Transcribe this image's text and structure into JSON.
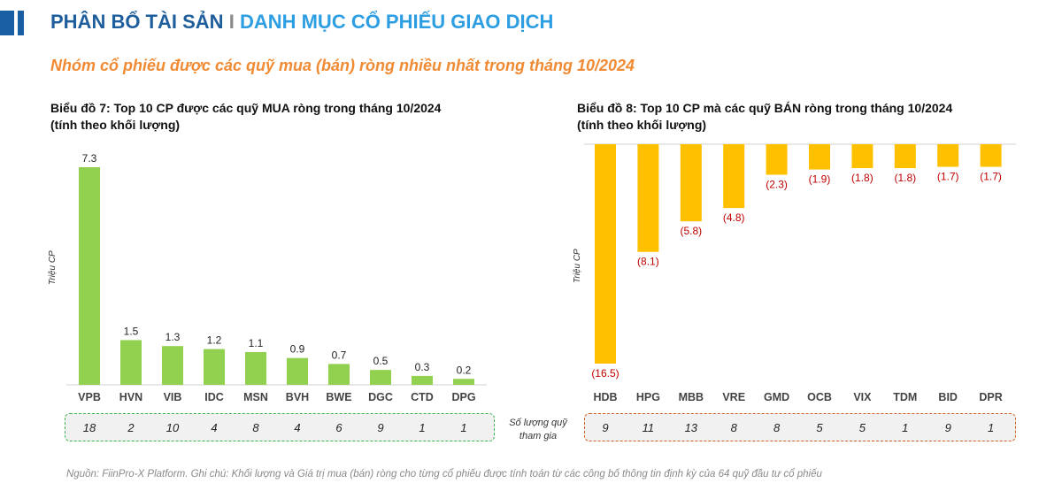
{
  "header": {
    "title_part1": "PHÂN BỔ TÀI SẢN",
    "separator": "I",
    "title_part2": "DANH MỤC CỔ PHIẾU GIAO DỊCH"
  },
  "subtitle": "Nhóm cổ phiếu được các quỹ mua (bán) ròng nhiều nhất trong tháng 10/2024",
  "funds_label": "Số lượng quỹ tham gia",
  "footer": "Nguồn: FiinPro-X Platform. Ghi chú: Khối lượng và Giá trị mua (bán) ròng cho từng cổ phiếu được tính toán từ các công bố thông tin định kỳ của 64 quỹ đầu tư cổ phiếu",
  "colors": {
    "buy": "#92d050",
    "sell": "#ffc000",
    "negative_label": "#c00000"
  },
  "chart_data": [
    {
      "type": "bar",
      "title": "Biểu đồ 7: Top 10 CP được các quỹ MUA ròng trong tháng 10/2024",
      "title_line2": "(tính theo khối lượng)",
      "ylabel": "Triệu CP",
      "categories": [
        "VPB",
        "HVN",
        "VIB",
        "IDC",
        "MSN",
        "BVH",
        "BWE",
        "DGC",
        "CTD",
        "DPG"
      ],
      "values": [
        7.3,
        1.5,
        1.3,
        1.2,
        1.1,
        0.9,
        0.7,
        0.5,
        0.3,
        0.2
      ],
      "value_labels": [
        "7.3",
        "1.5",
        "1.3",
        "1.2",
        "1.1",
        "0.9",
        "0.7",
        "0.5",
        "0.3",
        "0.2"
      ],
      "funds": [
        "18",
        "2",
        "10",
        "4",
        "8",
        "4",
        "6",
        "9",
        "1",
        "1"
      ]
    },
    {
      "type": "bar",
      "title": "Biểu đồ 8: Top 10 CP mà các quỹ BÁN ròng trong tháng 10/2024",
      "title_line2": "(tính theo khối lượng)",
      "ylabel": "Triệu CP",
      "categories": [
        "HDB",
        "HPG",
        "MBB",
        "VRE",
        "GMD",
        "OCB",
        "VIX",
        "TDM",
        "BID",
        "DPR"
      ],
      "values": [
        -16.5,
        -8.1,
        -5.8,
        -4.8,
        -2.3,
        -1.9,
        -1.8,
        -1.8,
        -1.7,
        -1.7
      ],
      "value_labels": [
        "(16.5)",
        "(8.1)",
        "(5.8)",
        "(4.8)",
        "(2.3)",
        "(1.9)",
        "(1.8)",
        "(1.8)",
        "(1.7)",
        "(1.7)"
      ],
      "funds": [
        "9",
        "11",
        "13",
        "8",
        "8",
        "5",
        "5",
        "1",
        "9",
        "1"
      ]
    }
  ]
}
